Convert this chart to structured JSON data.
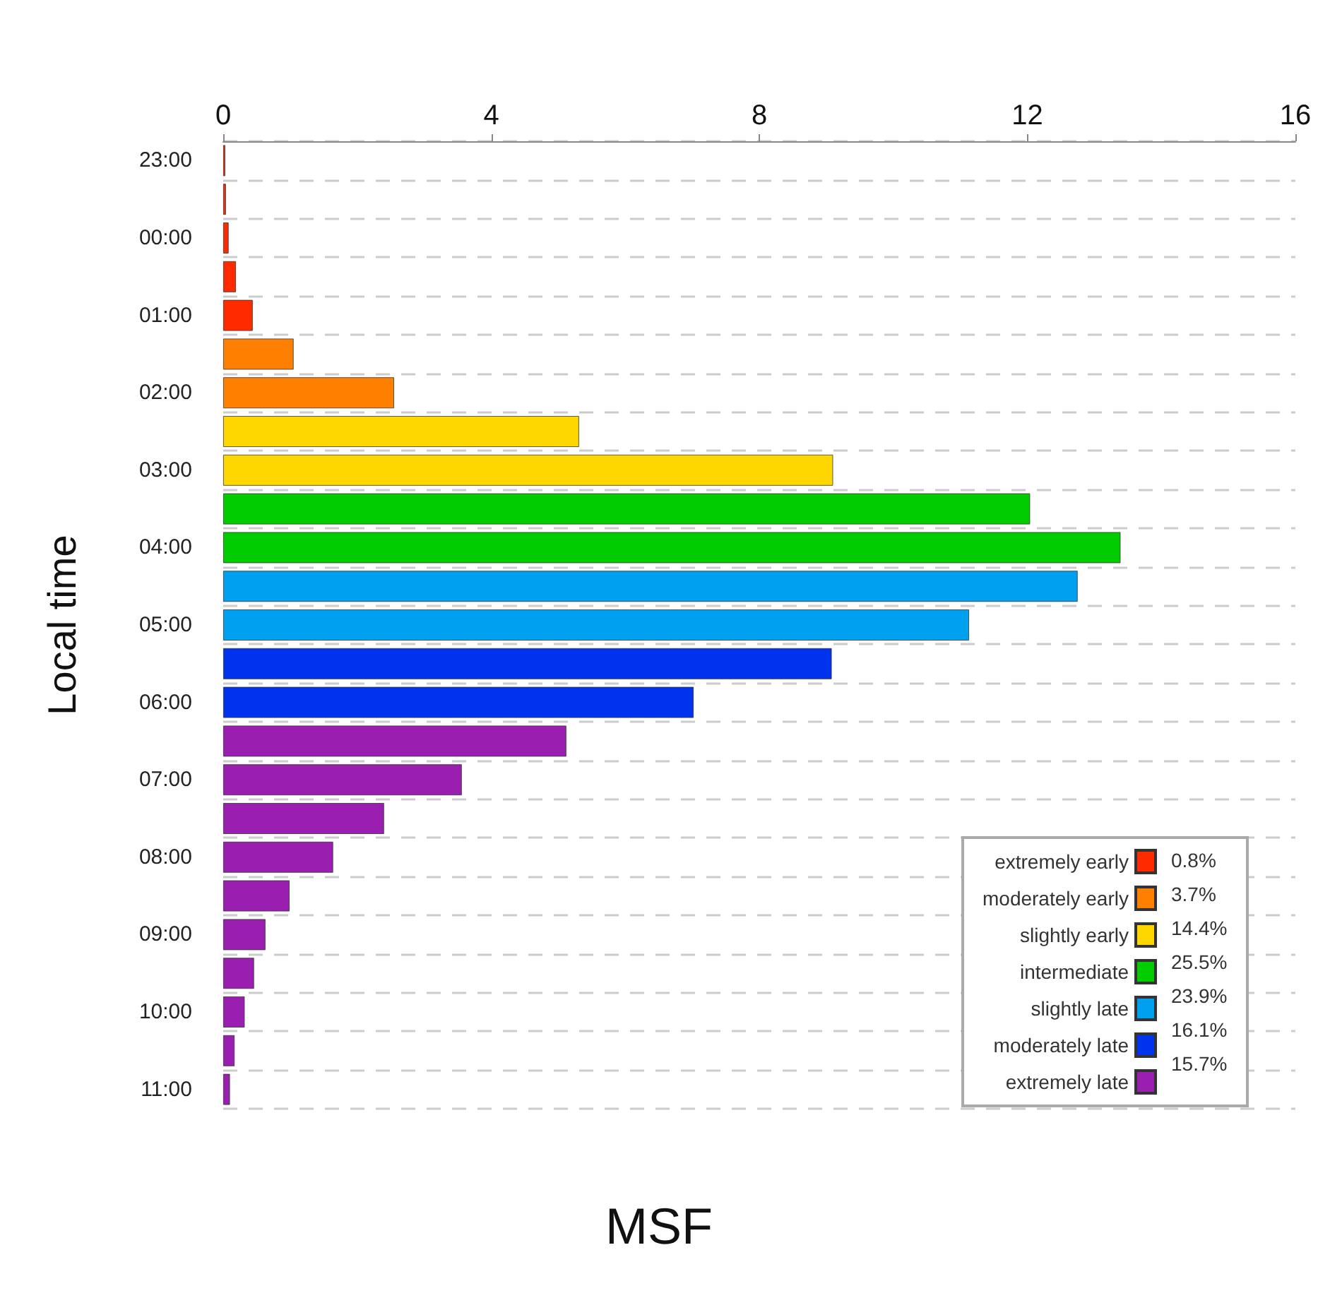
{
  "chart_data": {
    "type": "bar",
    "orientation": "horizontal",
    "xlabel": "MSF",
    "ylabel": "Local time",
    "categories": [
      "23:00",
      null,
      "00:00",
      null,
      "01:00",
      null,
      "02:00",
      null,
      "03:00",
      null,
      "04:00",
      null,
      "05:00",
      null,
      "06:00",
      null,
      "07:00",
      null,
      "08:00",
      null,
      "09:00",
      null,
      "10:00",
      null,
      "11:00"
    ],
    "series": [
      {
        "name": "extremely early",
        "color": "#ff2a00",
        "values": [
          0.03,
          0.04,
          0.08,
          0.19,
          0.44,
          null,
          null,
          null,
          null,
          null,
          null,
          null,
          null,
          null,
          null,
          null,
          null,
          null,
          null,
          null,
          null,
          null,
          null,
          null,
          null
        ]
      },
      {
        "name": "moderately early",
        "color": "#ff8000",
        "values": [
          null,
          null,
          null,
          null,
          null,
          1.05,
          2.55,
          null,
          null,
          null,
          null,
          null,
          null,
          null,
          null,
          null,
          null,
          null,
          null,
          null,
          null,
          null,
          null,
          null,
          null
        ]
      },
      {
        "name": "slightly early",
        "color": "#ffd700",
        "values": [
          null,
          null,
          null,
          null,
          null,
          null,
          null,
          5.31,
          9.1,
          null,
          null,
          null,
          null,
          null,
          null,
          null,
          null,
          null,
          null,
          null,
          null,
          null,
          null,
          null,
          null
        ]
      },
      {
        "name": "intermediate",
        "color": "#00cc00",
        "values": [
          null,
          null,
          null,
          null,
          null,
          null,
          null,
          null,
          null,
          12.04,
          13.39,
          null,
          null,
          null,
          null,
          null,
          null,
          null,
          null,
          null,
          null,
          null,
          null,
          null,
          null
        ]
      },
      {
        "name": "slightly late",
        "color": "#00a0f0",
        "values": [
          null,
          null,
          null,
          null,
          null,
          null,
          null,
          null,
          null,
          null,
          null,
          12.75,
          11.13,
          null,
          null,
          null,
          null,
          null,
          null,
          null,
          null,
          null,
          null,
          null,
          null
        ]
      },
      {
        "name": "moderately late",
        "color": "#0033ee",
        "values": [
          null,
          null,
          null,
          null,
          null,
          null,
          null,
          null,
          null,
          null,
          null,
          null,
          null,
          9.08,
          7.02,
          null,
          null,
          null,
          null,
          null,
          null,
          null,
          null,
          null,
          null
        ]
      },
      {
        "name": "extremely late",
        "color": "#9a1fb0",
        "values": [
          null,
          null,
          null,
          null,
          null,
          null,
          null,
          null,
          null,
          null,
          null,
          null,
          null,
          null,
          null,
          5.12,
          3.56,
          2.4,
          1.64,
          0.99,
          0.63,
          0.46,
          0.32,
          0.17,
          0.1
        ]
      }
    ],
    "annotations": [
      "0.8%",
      "3.7%",
      "14.4%",
      "25.5%",
      "23.9%",
      "16.1%",
      "15.7%"
    ],
    "xlim": [
      0,
      16
    ],
    "xticks": [
      0,
      4,
      8,
      12,
      16
    ],
    "grid": "y",
    "legend": "bottom right"
  }
}
